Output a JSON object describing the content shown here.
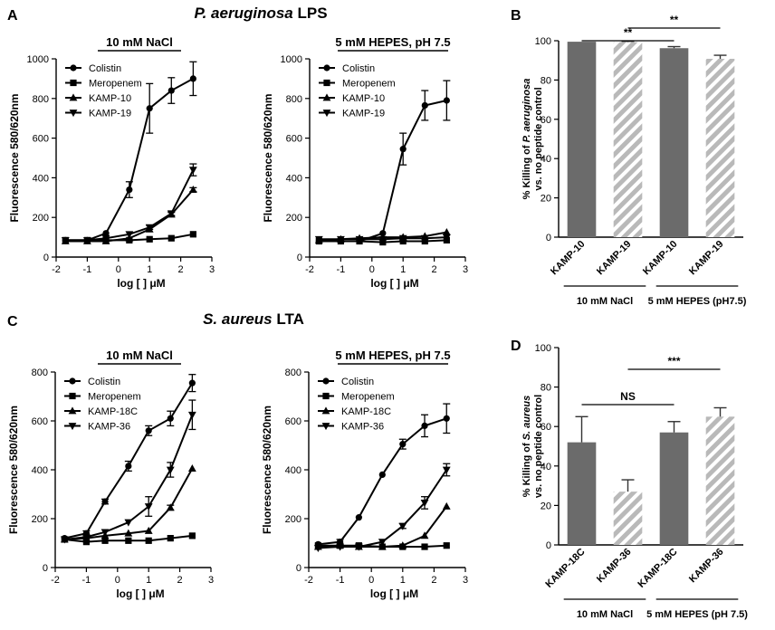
{
  "figure": {
    "panel_labels": [
      "A",
      "B",
      "C",
      "D"
    ],
    "titles": {
      "A": {
        "italic": "P. aeruginosa",
        "rest": " LPS"
      },
      "C": {
        "italic": "S. aureus",
        "rest": " LTA"
      }
    }
  },
  "chart_data": [
    {
      "id": "A1",
      "type": "line",
      "subtitle": "10 mM NaCl",
      "xlabel": "log [ ] μM",
      "ylabel": "Fluorescence 580/620nm",
      "xlim": [
        -2,
        3
      ],
      "ylim": [
        0,
        1000
      ],
      "xticks": [
        -2,
        -1,
        0,
        1,
        2,
        3
      ],
      "yticks": [
        0,
        200,
        400,
        600,
        800,
        1000
      ],
      "x": [
        -1.7,
        -1.0,
        -0.4,
        0.35,
        1.0,
        1.7,
        2.4
      ],
      "series": [
        {
          "name": "Colistin",
          "marker": "circle",
          "values": [
            85,
            85,
            120,
            340,
            750,
            840,
            900
          ],
          "errors": [
            0,
            0,
            0,
            40,
            125,
            65,
            85
          ]
        },
        {
          "name": "Meropenem",
          "marker": "square",
          "values": [
            85,
            85,
            85,
            85,
            90,
            95,
            115
          ],
          "errors": [
            0,
            0,
            0,
            0,
            0,
            0,
            0
          ]
        },
        {
          "name": "KAMP-10",
          "marker": "triangle-up",
          "values": [
            80,
            80,
            80,
            95,
            140,
            215,
            340
          ],
          "errors": [
            0,
            0,
            0,
            0,
            0,
            10,
            10
          ]
        },
        {
          "name": "KAMP-19",
          "marker": "triangle-down",
          "values": [
            85,
            85,
            95,
            115,
            150,
            220,
            440
          ],
          "errors": [
            0,
            0,
            0,
            0,
            10,
            10,
            30
          ]
        }
      ]
    },
    {
      "id": "A2",
      "type": "line",
      "subtitle": "5 mM HEPES, pH 7.5",
      "xlabel": "log [ ] μM",
      "ylabel": "Fluorescence 580/620nm",
      "xlim": [
        -2,
        3
      ],
      "ylim": [
        0,
        1000
      ],
      "xticks": [
        -2,
        -1,
        0,
        1,
        2,
        3
      ],
      "yticks": [
        0,
        200,
        400,
        600,
        800,
        1000
      ],
      "x": [
        -1.7,
        -1.0,
        -0.4,
        0.35,
        1.0,
        1.7,
        2.4
      ],
      "series": [
        {
          "name": "Colistin",
          "marker": "circle",
          "values": [
            80,
            80,
            80,
            120,
            545,
            765,
            790
          ],
          "errors": [
            0,
            0,
            0,
            0,
            80,
            75,
            100
          ]
        },
        {
          "name": "Meropenem",
          "marker": "square",
          "values": [
            80,
            80,
            80,
            75,
            80,
            80,
            85
          ],
          "errors": [
            0,
            0,
            0,
            0,
            0,
            0,
            0
          ]
        },
        {
          "name": "KAMP-10",
          "marker": "triangle-up",
          "values": [
            85,
            90,
            95,
            100,
            100,
            105,
            125
          ],
          "errors": [
            0,
            0,
            0,
            0,
            0,
            0,
            0
          ]
        },
        {
          "name": "KAMP-19",
          "marker": "triangle-down",
          "values": [
            90,
            90,
            90,
            90,
            95,
            95,
            100
          ],
          "errors": [
            0,
            0,
            0,
            0,
            0,
            0,
            0
          ]
        }
      ]
    },
    {
      "id": "B",
      "type": "bar",
      "ylabel_parts": [
        "% Killing of ",
        "P. aeruginosa"
      ],
      "ylabel_line2": "vs. no peptide control",
      "ylim": [
        0,
        100
      ],
      "yticks": [
        0,
        20,
        40,
        60,
        80,
        100
      ],
      "categories": [
        "KAMP-10",
        "KAMP-19",
        "KAMP-10",
        "KAMP-19"
      ],
      "values": [
        99.5,
        99.3,
        96.2,
        90.8
      ],
      "errors": [
        0,
        0.4,
        0.8,
        1.8
      ],
      "styles": [
        "solid",
        "hatched",
        "solid",
        "hatched"
      ],
      "groups": [
        {
          "label": "10 mM NaCl",
          "span": [
            0,
            1
          ]
        },
        {
          "label": "5 mM HEPES (pH7.5)",
          "span": [
            2,
            3
          ]
        }
      ],
      "significance": [
        {
          "from": 0,
          "to": 2,
          "label": "**"
        },
        {
          "from": 1,
          "to": 3,
          "label": "**"
        }
      ]
    },
    {
      "id": "C1",
      "type": "line",
      "subtitle": "10 mM NaCl",
      "xlabel": "log [ ] μM",
      "ylabel": "Fluorescence 580/620nm",
      "xlim": [
        -2,
        3
      ],
      "ylim": [
        0,
        800
      ],
      "xticks": [
        -2,
        -1,
        0,
        1,
        2,
        3
      ],
      "yticks": [
        0,
        200,
        400,
        600,
        800
      ],
      "x": [
        -1.7,
        -1.0,
        -0.4,
        0.35,
        1.0,
        1.7,
        2.4
      ],
      "series": [
        {
          "name": "Colistin",
          "marker": "circle",
          "values": [
            120,
            140,
            270,
            415,
            560,
            610,
            755
          ],
          "errors": [
            0,
            10,
            10,
            20,
            20,
            30,
            35
          ]
        },
        {
          "name": "Meropenem",
          "marker": "square",
          "values": [
            115,
            105,
            110,
            110,
            110,
            120,
            130
          ],
          "errors": [
            0,
            0,
            0,
            0,
            0,
            0,
            0
          ]
        },
        {
          "name": "KAMP-18C",
          "marker": "triangle-up",
          "values": [
            115,
            120,
            130,
            140,
            150,
            245,
            405
          ],
          "errors": [
            0,
            0,
            0,
            0,
            0,
            10,
            0
          ]
        },
        {
          "name": "KAMP-36",
          "marker": "triangle-down",
          "values": [
            115,
            125,
            145,
            185,
            250,
            400,
            625
          ],
          "errors": [
            0,
            0,
            0,
            0,
            40,
            30,
            60
          ]
        }
      ]
    },
    {
      "id": "C2",
      "type": "line",
      "subtitle": "5 mM HEPES, pH 7.5",
      "xlabel": "log [ ] μM",
      "ylabel": "Fluorescence 580/620nm",
      "xlim": [
        -2,
        3
      ],
      "ylim": [
        0,
        800
      ],
      "xticks": [
        -2,
        -1,
        0,
        1,
        2,
        3
      ],
      "yticks": [
        0,
        200,
        400,
        600,
        800
      ],
      "x": [
        -1.7,
        -1.0,
        -0.4,
        0.35,
        1.0,
        1.7,
        2.4
      ],
      "series": [
        {
          "name": "Colistin",
          "marker": "circle",
          "values": [
            95,
            105,
            205,
            380,
            505,
            580,
            610
          ],
          "errors": [
            0,
            10,
            0,
            0,
            20,
            45,
            60
          ]
        },
        {
          "name": "Meropenem",
          "marker": "square",
          "values": [
            90,
            90,
            90,
            85,
            85,
            85,
            90
          ],
          "errors": [
            0,
            0,
            0,
            0,
            0,
            0,
            0
          ]
        },
        {
          "name": "KAMP-18C",
          "marker": "triangle-up",
          "values": [
            85,
            90,
            85,
            85,
            90,
            130,
            250
          ],
          "errors": [
            0,
            0,
            0,
            0,
            0,
            0,
            0
          ]
        },
        {
          "name": "KAMP-36",
          "marker": "triangle-down",
          "values": [
            80,
            85,
            85,
            105,
            170,
            265,
            400
          ],
          "errors": [
            0,
            0,
            0,
            0,
            10,
            25,
            25
          ]
        }
      ]
    },
    {
      "id": "D",
      "type": "bar",
      "ylabel_parts": [
        "% Killing of ",
        "S. aureus"
      ],
      "ylabel_line2": "vs. no peptide control",
      "ylim": [
        0,
        100
      ],
      "yticks": [
        0,
        20,
        40,
        60,
        80,
        100
      ],
      "categories": [
        "KAMP-18C",
        "KAMP-36",
        "KAMP-18C",
        "KAMP-36"
      ],
      "values": [
        52,
        27,
        57,
        65
      ],
      "errors": [
        13,
        6,
        5.5,
        4.5
      ],
      "styles": [
        "solid",
        "hatched",
        "solid",
        "hatched"
      ],
      "groups": [
        {
          "label": "10 mM NaCl",
          "span": [
            0,
            1
          ]
        },
        {
          "label": "5 mM HEPES (pH 7.5)",
          "span": [
            2,
            3
          ]
        }
      ],
      "significance": [
        {
          "from": 0,
          "to": 2,
          "label": "NS"
        },
        {
          "from": 1,
          "to": 3,
          "label": "***"
        }
      ]
    }
  ]
}
